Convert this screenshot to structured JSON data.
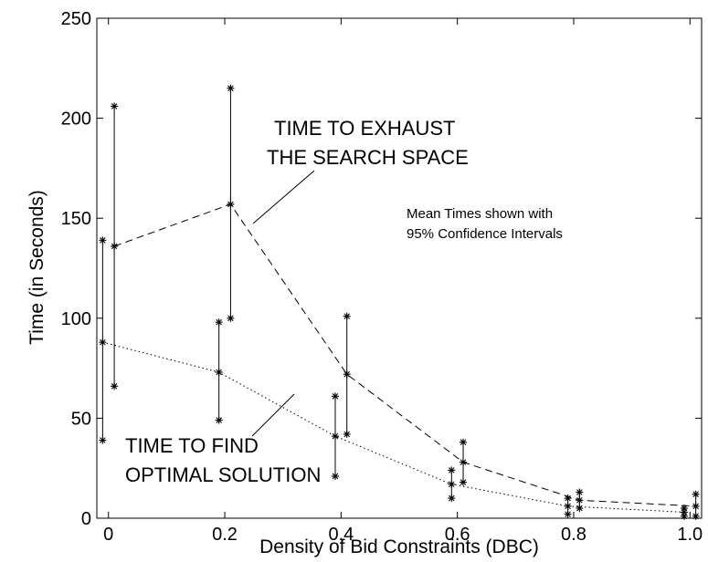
{
  "chart_data": {
    "type": "line",
    "title": "",
    "xlabel": "Density of Bid Constraints (DBC)",
    "ylabel": "Time (in Seconds)",
    "xlim": [
      -0.02,
      1.02
    ],
    "ylim": [
      0,
      250
    ],
    "x_ticks": [
      0,
      0.2,
      0.4,
      0.6,
      0.8,
      1.0
    ],
    "x_tick_labels": [
      "0",
      "0.2",
      "0.4",
      "0.6",
      "0.8",
      "1.0"
    ],
    "y_ticks": [
      0,
      50,
      100,
      150,
      200,
      250
    ],
    "y_tick_labels": [
      "0",
      "50",
      "100",
      "150",
      "200",
      "250"
    ],
    "grid": false,
    "series": [
      {
        "style": "dashed",
        "x": [
          0.01,
          0.21,
          0.41,
          0.61,
          0.81,
          1.01
        ],
        "mean": [
          136,
          157,
          72,
          28,
          9,
          6
        ],
        "lower": [
          66,
          100,
          42,
          18,
          5,
          1
        ],
        "upper": [
          206,
          215,
          101,
          38,
          13,
          12
        ]
      },
      {
        "style": "dotted",
        "x": [
          -0.01,
          0.19,
          0.39,
          0.59,
          0.79,
          0.99
        ],
        "mean": [
          88,
          73,
          41,
          17,
          6,
          3
        ],
        "lower": [
          39,
          49,
          21,
          10,
          2,
          1
        ],
        "upper": [
          139,
          98,
          61,
          24,
          10,
          5
        ]
      }
    ],
    "annotations": [
      {
        "lines": [
          "TIME TO EXHAUST",
          "THE SEARCH SPACE"
        ]
      },
      {
        "lines": [
          "Mean Times shown with",
          "95% Confidence Intervals"
        ]
      },
      {
        "lines": [
          "TIME TO FIND",
          "OPTIMAL SOLUTION"
        ]
      }
    ]
  }
}
